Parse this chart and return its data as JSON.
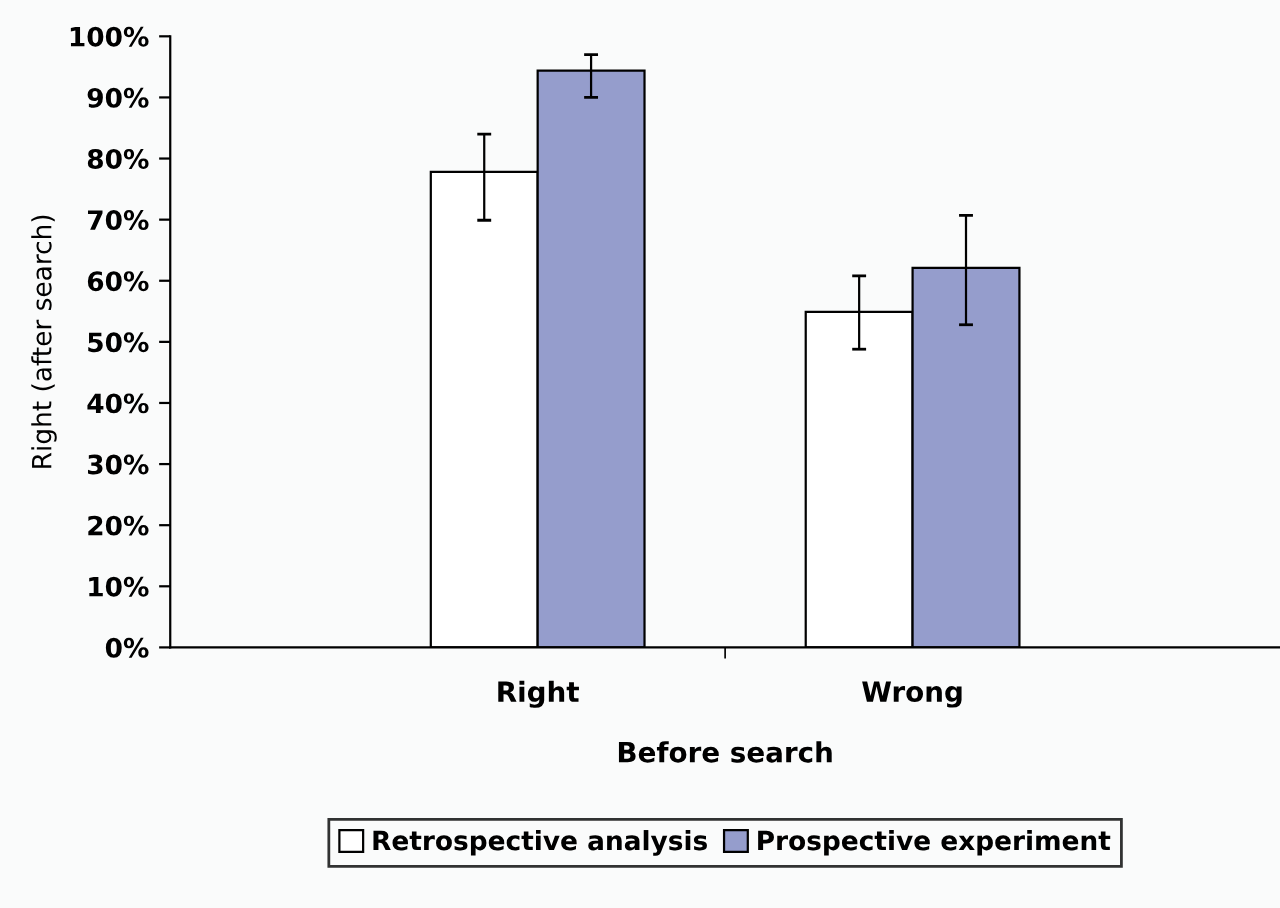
{
  "chart_data": {
    "type": "bar",
    "xlabel": "Before search",
    "ylabel": "Right (after search)",
    "categories": [
      "Right",
      "Wrong"
    ],
    "series": [
      {
        "name": "Retrospective analysis",
        "color": "#ffffff",
        "values": [
          77.8,
          54.9
        ],
        "errors": [
          [
            69.9,
            84
          ],
          [
            48.8,
            60.8
          ]
        ]
      },
      {
        "name": "Prospective experiment",
        "color": "#959dcc",
        "values": [
          94.4,
          62.1
        ],
        "errors": [
          [
            90,
            97
          ],
          [
            52.8,
            70.7
          ]
        ]
      }
    ],
    "ylim": [
      0,
      100
    ],
    "yticks": [
      {
        "value": 0,
        "label": "0%"
      },
      {
        "value": 10,
        "label": "10%"
      },
      {
        "value": 20,
        "label": "20%"
      },
      {
        "value": 30,
        "label": "30%"
      },
      {
        "value": 40,
        "label": "40%"
      },
      {
        "value": 50,
        "label": "50%"
      },
      {
        "value": 60,
        "label": "60%"
      },
      {
        "value": 70,
        "label": "70%"
      },
      {
        "value": 80,
        "label": "80%"
      },
      {
        "value": 90,
        "label": "90%"
      },
      {
        "value": 100,
        "label": "100%"
      }
    ],
    "grid": false,
    "legend": "bottom"
  }
}
